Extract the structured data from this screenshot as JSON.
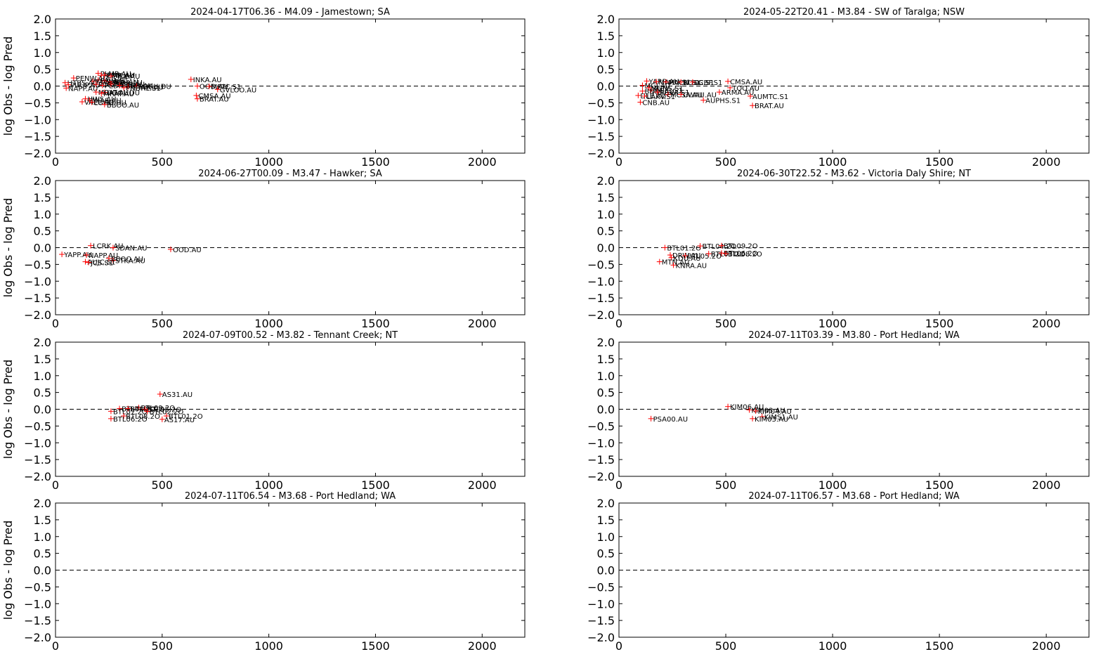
{
  "chart_data": [
    {
      "type": "scatter",
      "title": "2024-04-17T06.36 - M4.09 - Jamestown; SA",
      "xlabel": "",
      "ylabel": "log Obs - log Pred",
      "xlim": [
        0,
        2200
      ],
      "ylim": [
        -2.0,
        2.0
      ],
      "xticks": [
        "0",
        "500",
        "1000",
        "1500",
        "2000"
      ],
      "yticks": [
        "2.0",
        "1.5",
        "1.0",
        "0.5",
        "0.0",
        "−0.5",
        "−1.0",
        "−1.5",
        "−2.0"
      ],
      "reference_line": {
        "y": 0.0,
        "style": "dashed",
        "color": "#000000"
      },
      "marker": {
        "symbol": "+",
        "color": "#ff0000"
      },
      "points": [
        {
          "x": 200,
          "y": 0.38,
          "label": "PLMR.AU"
        },
        {
          "x": 215,
          "y": 0.32,
          "label": "PLMR.AU"
        },
        {
          "x": 230,
          "y": 0.33,
          "label": "PINK.AU"
        },
        {
          "x": 260,
          "y": 0.3,
          "label": "PILK.AU"
        },
        {
          "x": 85,
          "y": 0.24,
          "label": "PENW.AU"
        },
        {
          "x": 200,
          "y": 0.18,
          "label": "PAVA.S1"
        },
        {
          "x": 230,
          "y": 0.15,
          "label": "PMBS.AU"
        },
        {
          "x": 255,
          "y": 0.12,
          "label": "PBRA.AU"
        },
        {
          "x": 175,
          "y": 0.14,
          "label": "PAVA.S1"
        },
        {
          "x": 45,
          "y": 0.1,
          "label": "HTBS.AU"
        },
        {
          "x": 60,
          "y": 0.04,
          "label": "PUUP.AU"
        },
        {
          "x": 190,
          "y": 0.05,
          "label": "PDRA.AU"
        },
        {
          "x": 220,
          "y": 0.02,
          "label": "PEDR.AU"
        },
        {
          "x": 260,
          "y": 0.06,
          "label": "PNDR.AU"
        },
        {
          "x": 300,
          "y": 0.02,
          "label": "PUHS.AU"
        },
        {
          "x": 340,
          "y": -0.02,
          "label": "HAWK.AU"
        },
        {
          "x": 380,
          "y": 0.0,
          "label": "PORU.DU"
        },
        {
          "x": 320,
          "y": -0.05,
          "label": "PNDRL.S1"
        },
        {
          "x": 50,
          "y": -0.06,
          "label": "NAPP.AU"
        },
        {
          "x": 635,
          "y": 0.2,
          "label": "INKA.AU"
        },
        {
          "x": 665,
          "y": 0.0,
          "label": "OOD.AU"
        },
        {
          "x": 720,
          "y": -0.01,
          "label": "MFTC.S1"
        },
        {
          "x": 760,
          "y": -0.1,
          "label": "GVLOO.AU"
        },
        {
          "x": 190,
          "y": -0.18,
          "label": "MRAT.AU"
        },
        {
          "x": 230,
          "y": -0.19,
          "label": "DOOL.DU"
        },
        {
          "x": 215,
          "y": -0.22,
          "label": "MRAT.AU"
        },
        {
          "x": 660,
          "y": -0.28,
          "label": "CMSA.AU"
        },
        {
          "x": 665,
          "y": -0.38,
          "label": "BRAT.AU"
        },
        {
          "x": 140,
          "y": -0.38,
          "label": "HWS.AU"
        },
        {
          "x": 160,
          "y": -0.42,
          "label": "MIAS.AU"
        },
        {
          "x": 125,
          "y": -0.47,
          "label": "VAEL.AU"
        },
        {
          "x": 170,
          "y": -0.48,
          "label": "LGCG.DU"
        },
        {
          "x": 230,
          "y": -0.55,
          "label": "BBOO.AU"
        }
      ]
    },
    {
      "type": "scatter",
      "title": "2024-05-22T20.41 - M3.84 - SW of Taralga; NSW",
      "xlabel": "",
      "ylabel": "",
      "xlim": [
        0,
        2200
      ],
      "ylim": [
        -2.0,
        2.0
      ],
      "xticks": [
        "0",
        "500",
        "1000",
        "1500",
        "2000"
      ],
      "yticks": [
        "2.0",
        "1.5",
        "1.0",
        "0.5",
        "0.0",
        "−0.5",
        "−1.0",
        "−1.5",
        "−2.0"
      ],
      "reference_line": {
        "y": 0.0,
        "style": "dashed",
        "color": "#000000"
      },
      "marker": {
        "symbol": "+",
        "color": "#ff0000"
      },
      "points": [
        {
          "x": 130,
          "y": 0.15,
          "label": "YARR.AU"
        },
        {
          "x": 175,
          "y": 0.13,
          "label": "MAHU.S1"
        },
        {
          "x": 220,
          "y": 0.12,
          "label": "MACN.S1"
        },
        {
          "x": 290,
          "y": 0.12,
          "label": "BOSG.S1"
        },
        {
          "x": 345,
          "y": 0.12,
          "label": "LCBF.S1"
        },
        {
          "x": 510,
          "y": 0.14,
          "label": "CMSA.AU"
        },
        {
          "x": 520,
          "y": -0.05,
          "label": "TOO.AU"
        },
        {
          "x": 110,
          "y": 0.02,
          "label": "MGJ.AU"
        },
        {
          "x": 140,
          "y": -0.05,
          "label": "MGHS.S1"
        },
        {
          "x": 150,
          "y": -0.12,
          "label": "MGJC.S1"
        },
        {
          "x": 110,
          "y": -0.15,
          "label": "BNDI.AU"
        },
        {
          "x": 180,
          "y": -0.18,
          "label": "ARKA.S1"
        },
        {
          "x": 90,
          "y": -0.28,
          "label": "DLE.AU"
        },
        {
          "x": 230,
          "y": -0.25,
          "label": "MCSA.AU"
        },
        {
          "x": 290,
          "y": -0.25,
          "label": "CWAU.AU"
        },
        {
          "x": 120,
          "y": -0.3,
          "label": "LAKV.S1"
        },
        {
          "x": 470,
          "y": -0.18,
          "label": "ARMA.AU"
        },
        {
          "x": 615,
          "y": -0.3,
          "label": "AUMTC.S1"
        },
        {
          "x": 395,
          "y": -0.42,
          "label": "AUPHS.S1"
        },
        {
          "x": 100,
          "y": -0.48,
          "label": "CNB.AU"
        },
        {
          "x": 625,
          "y": -0.58,
          "label": "BRAT.AU"
        }
      ]
    },
    {
      "type": "scatter",
      "title": "2024-06-27T00.09 - M3.47 - Hawker; SA",
      "xlabel": "",
      "ylabel": "log Obs - log Pred",
      "xlim": [
        0,
        2200
      ],
      "ylim": [
        -2.0,
        2.0
      ],
      "xticks": [
        "0",
        "500",
        "1000",
        "1500",
        "2000"
      ],
      "yticks": [
        "2.0",
        "1.5",
        "1.0",
        "0.5",
        "0.0",
        "−0.5",
        "−1.0",
        "−1.5",
        "−2.0"
      ],
      "reference_line": {
        "y": 0.0,
        "style": "dashed",
        "color": "#000000"
      },
      "marker": {
        "symbol": "+",
        "color": "#ff0000"
      },
      "points": [
        {
          "x": 165,
          "y": 0.06,
          "label": "LCRK.AU"
        },
        {
          "x": 270,
          "y": 0.0,
          "label": "SDAN.AU"
        },
        {
          "x": 540,
          "y": -0.05,
          "label": "OOD.AU"
        },
        {
          "x": 30,
          "y": -0.2,
          "label": "YAPP.AU"
        },
        {
          "x": 145,
          "y": -0.22,
          "label": "NAPP.AU"
        },
        {
          "x": 250,
          "y": -0.32,
          "label": "BBOO.AU"
        },
        {
          "x": 270,
          "y": -0.38,
          "label": "STKA.AU"
        },
        {
          "x": 140,
          "y": -0.42,
          "label": "AUJC.S1"
        },
        {
          "x": 155,
          "y": -0.44,
          "label": "JCS.S1"
        }
      ]
    },
    {
      "type": "scatter",
      "title": "2024-06-30T22.52 - M3.62 - Victoria Daly Shire; NT",
      "xlabel": "",
      "ylabel": "",
      "xlim": [
        0,
        2200
      ],
      "ylim": [
        -2.0,
        2.0
      ],
      "xticks": [
        "0",
        "500",
        "1000",
        "1500",
        "2000"
      ],
      "yticks": [
        "2.0",
        "1.5",
        "1.0",
        "0.5",
        "0.0",
        "−0.5",
        "−1.0",
        "−1.5",
        "−2.0"
      ],
      "reference_line": {
        "y": 0.0,
        "style": "dashed",
        "color": "#000000"
      },
      "marker": {
        "symbol": "+",
        "color": "#ff0000"
      },
      "points": [
        {
          "x": 215,
          "y": 0.0,
          "label": "BTL01.2O"
        },
        {
          "x": 380,
          "y": 0.05,
          "label": "BTL04.2O"
        },
        {
          "x": 480,
          "y": 0.06,
          "label": "BTL09.2O"
        },
        {
          "x": 240,
          "y": -0.22,
          "label": "DRW.AU"
        },
        {
          "x": 310,
          "y": -0.24,
          "label": "BTL05.2O"
        },
        {
          "x": 420,
          "y": -0.18,
          "label": "BTL03.2O"
        },
        {
          "x": 480,
          "y": -0.16,
          "label": "BTL06.2O"
        },
        {
          "x": 500,
          "y": -0.18,
          "label": "BTL08.2O"
        },
        {
          "x": 245,
          "y": -0.3,
          "label": "KDU.AU"
        },
        {
          "x": 190,
          "y": -0.42,
          "label": "MTN.AU"
        },
        {
          "x": 255,
          "y": -0.52,
          "label": "KNRA.AU"
        }
      ]
    },
    {
      "type": "scatter",
      "title": "2024-07-09T00.52 - M3.82 - Tennant Creek; NT",
      "xlabel": "",
      "ylabel": "log Obs - log Pred",
      "xlim": [
        0,
        2200
      ],
      "ylim": [
        -2.0,
        2.0
      ],
      "xticks": [
        "0",
        "500",
        "1000",
        "1500",
        "2000"
      ],
      "yticks": [
        "2.0",
        "1.5",
        "1.0",
        "0.5",
        "0.0",
        "−0.5",
        "−1.0",
        "−1.5",
        "−2.0"
      ],
      "reference_line": {
        "y": 0.0,
        "style": "dashed",
        "color": "#000000"
      },
      "marker": {
        "symbol": "+",
        "color": "#ff0000"
      },
      "points": [
        {
          "x": 490,
          "y": 0.45,
          "label": "AS31.AU"
        },
        {
          "x": 390,
          "y": 0.05,
          "label": "BTL09.2O"
        },
        {
          "x": 300,
          "y": 0.02,
          "label": "BTL04.2O"
        },
        {
          "x": 340,
          "y": 0.02,
          "label": "BTL03.2O"
        },
        {
          "x": 420,
          "y": 0.0,
          "label": "BTL05.2O"
        },
        {
          "x": 260,
          "y": -0.06,
          "label": "BTL07.2O"
        },
        {
          "x": 430,
          "y": -0.06,
          "label": "BTL02.2O"
        },
        {
          "x": 320,
          "y": -0.2,
          "label": "BTL08.2O"
        },
        {
          "x": 520,
          "y": -0.2,
          "label": "BTL01.2O"
        },
        {
          "x": 260,
          "y": -0.28,
          "label": "BTL06.2O"
        },
        {
          "x": 500,
          "y": -0.3,
          "label": "AS17.AU"
        }
      ]
    },
    {
      "type": "scatter",
      "title": "2024-07-11T03.39 - M3.80 - Port Hedland; WA",
      "xlabel": "",
      "ylabel": "",
      "xlim": [
        0,
        2200
      ],
      "ylim": [
        -2.0,
        2.0
      ],
      "xticks": [
        "0",
        "500",
        "1000",
        "1500",
        "2000"
      ],
      "yticks": [
        "2.0",
        "1.5",
        "1.0",
        "0.5",
        "0.0",
        "−0.5",
        "−1.0",
        "−1.5",
        "−2.0"
      ],
      "reference_line": {
        "y": 0.0,
        "style": "dashed",
        "color": "#000000"
      },
      "marker": {
        "symbol": "+",
        "color": "#ff0000"
      },
      "points": [
        {
          "x": 510,
          "y": 0.08,
          "label": "KIM06.AU"
        },
        {
          "x": 610,
          "y": -0.02,
          "label": "KIM03.AU"
        },
        {
          "x": 640,
          "y": -0.05,
          "label": "KIM04.AU"
        },
        {
          "x": 670,
          "y": -0.22,
          "label": "KIMS1.AU"
        },
        {
          "x": 150,
          "y": -0.28,
          "label": "PSA00.AU"
        },
        {
          "x": 625,
          "y": -0.28,
          "label": "KIM03.AU"
        }
      ]
    },
    {
      "type": "scatter",
      "title": "2024-07-11T06.54 - M3.68 - Port Hedland; WA",
      "xlabel": "",
      "ylabel": "log Obs - log Pred",
      "xlim": [
        0,
        2200
      ],
      "ylim": [
        -2.0,
        2.0
      ],
      "xticks": [
        "0",
        "500",
        "1000",
        "1500",
        "2000"
      ],
      "yticks": [
        "2.0",
        "1.5",
        "1.0",
        "0.5",
        "0.0",
        "−0.5",
        "−1.0",
        "−1.5",
        "−2.0"
      ],
      "reference_line": {
        "y": 0.0,
        "style": "dashed",
        "color": "#000000"
      },
      "marker": {
        "symbol": "+",
        "color": "#ff0000"
      },
      "points": []
    },
    {
      "type": "scatter",
      "title": "2024-07-11T06.57 - M3.68 - Port Hedland; WA",
      "xlabel": "",
      "ylabel": "",
      "xlim": [
        0,
        2200
      ],
      "ylim": [
        -2.0,
        2.0
      ],
      "xticks": [
        "0",
        "500",
        "1000",
        "1500",
        "2000"
      ],
      "yticks": [
        "2.0",
        "1.5",
        "1.0",
        "0.5",
        "0.0",
        "−0.5",
        "−1.0",
        "−1.5",
        "−2.0"
      ],
      "reference_line": {
        "y": 0.0,
        "style": "dashed",
        "color": "#000000"
      },
      "marker": {
        "symbol": "+",
        "color": "#ff0000"
      },
      "points": []
    }
  ]
}
